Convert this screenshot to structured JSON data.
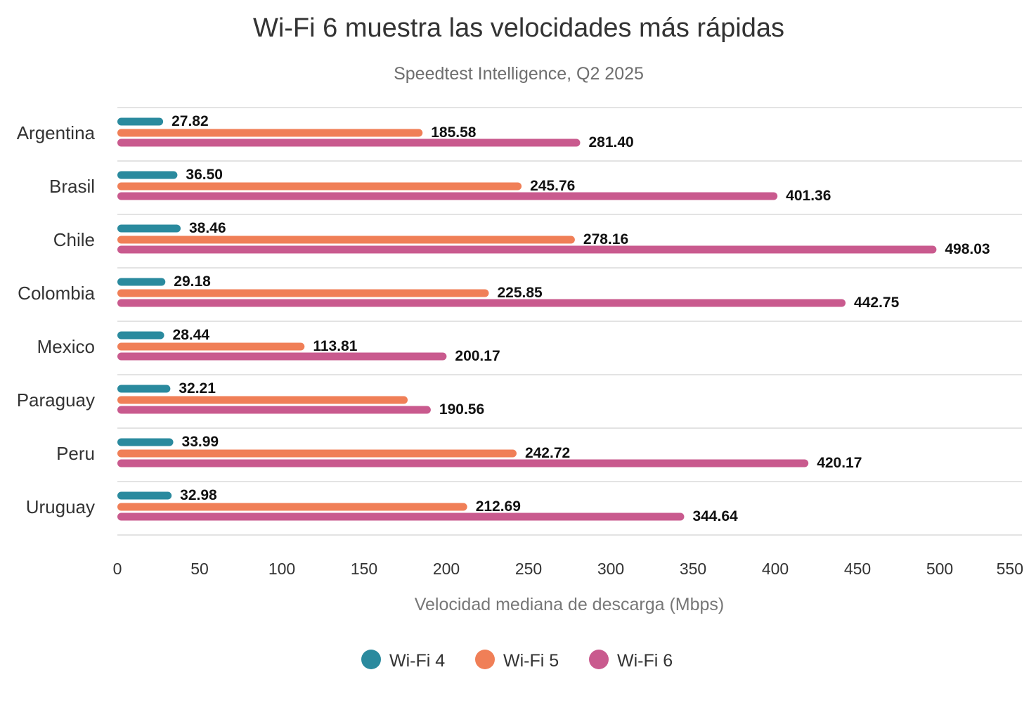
{
  "chart_data": {
    "type": "bar",
    "orientation": "horizontal",
    "title": "Wi-Fi 6 muestra las velocidades más rápidas",
    "subtitle": "Speedtest Intelligence, Q2 2025",
    "xlabel": "Velocidad mediana de descarga (Mbps)",
    "ylabel": "",
    "xlim": [
      0,
      550
    ],
    "xticks": [
      "0",
      "50",
      "100",
      "150",
      "200",
      "250",
      "300",
      "350",
      "400",
      "450",
      "500",
      "550"
    ],
    "categories": [
      "Argentina",
      "Brasil",
      "Chile",
      "Colombia",
      "Mexico",
      "Paraguay",
      "Peru",
      "Uruguay"
    ],
    "series": [
      {
        "name": "Wi-Fi 4",
        "color": "#2a8a9e",
        "values": [
          27.82,
          36.5,
          38.46,
          29.18,
          28.44,
          32.21,
          33.99,
          32.98
        ],
        "labels": [
          "27.82",
          "36.50",
          "38.46",
          "29.18",
          "28.44",
          "32.21",
          "33.99",
          "32.98"
        ]
      },
      {
        "name": "Wi-Fi 5",
        "color": "#f07f57",
        "values": [
          185.58,
          245.76,
          278.16,
          225.85,
          113.81,
          176.5,
          242.72,
          212.69
        ],
        "labels": [
          "185.58",
          "245.76",
          "278.16",
          "225.85",
          "113.81",
          "",
          "242.72",
          "212.69"
        ]
      },
      {
        "name": "Wi-Fi 6",
        "color": "#c95a8e",
        "values": [
          281.4,
          401.36,
          498.03,
          442.75,
          200.17,
          190.56,
          420.17,
          344.64
        ],
        "labels": [
          "281.40",
          "401.36",
          "498.03",
          "442.75",
          "200.17",
          "190.56",
          "420.17",
          "344.64"
        ]
      }
    ],
    "legend": "bottom-center",
    "grid": "horizontal-separators"
  }
}
